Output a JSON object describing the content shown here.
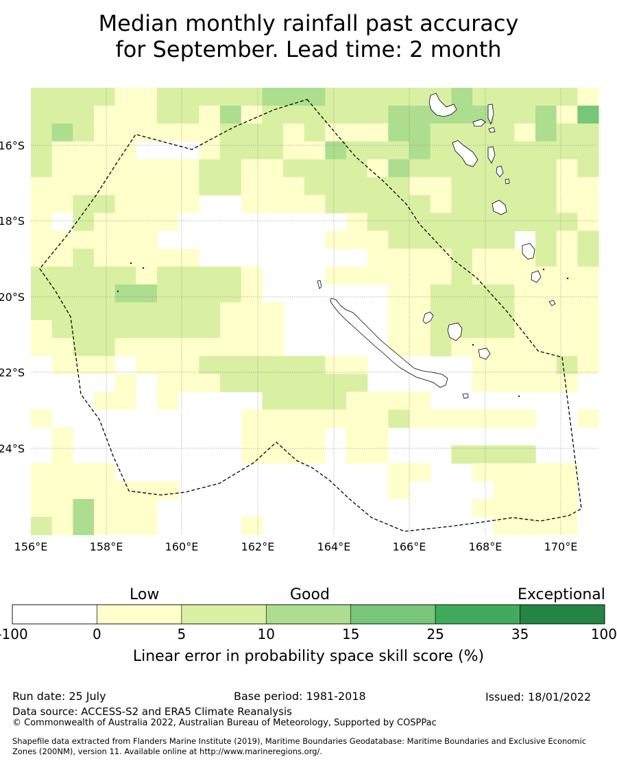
{
  "title": {
    "line1": "Median monthly rainfall past accuracy",
    "line2": "for September. Lead time: 2 month"
  },
  "map": {
    "lon_ticks": [
      "156°E",
      "158°E",
      "160°E",
      "162°E",
      "164°E",
      "166°E",
      "168°E",
      "170°E"
    ],
    "lat_ticks": [
      "16°S",
      "18°S",
      "20°S",
      "22°S",
      "24°S"
    ]
  },
  "colorbar": {
    "categories": [
      "Low",
      "Good",
      "Exceptional"
    ],
    "ticks": [
      "-100",
      "0",
      "5",
      "10",
      "15",
      "25",
      "35",
      "100"
    ],
    "colors": [
      "#ffffff",
      "#ffffcc",
      "#d9f0a3",
      "#addd8e",
      "#78c679",
      "#41ab5d",
      "#238443"
    ],
    "label": "Linear error in probability space skill score (%)"
  },
  "footer": {
    "run_date": "Run date: 25 July",
    "base_period": "Base period: 1981-2018",
    "issued": "Issued: 18/01/2022",
    "data_source": "Data source: ACCESS-S2 and ERA5 Climate Reanalysis",
    "copyright": "© Commonwealth of Australia 2022, Australian Bureau of Meteorology, Supported by COSPPac",
    "shapefile_line1": "Shapefile data extracted from Flanders Marine Institute (2019), Maritime Boundaries Geodatabase: Maritime Boundaries and Exclusive Economic",
    "shapefile_line2": "Zones (200NM), version 11. Available online at http://www.marineregions.org/."
  }
}
